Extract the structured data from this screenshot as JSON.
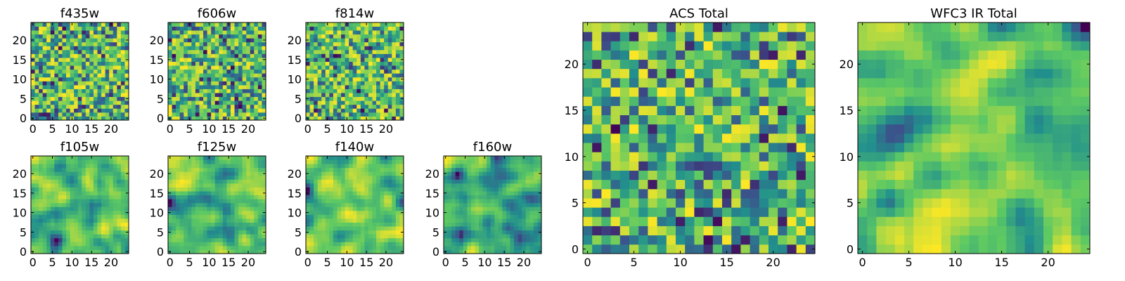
{
  "colormap": [
    "#440154",
    "#3b528b",
    "#21908d",
    "#5dc963",
    "#fde725"
  ],
  "chart_data": [
    {
      "type": "heatmap",
      "title": "f435w",
      "xlim": [
        -0.5,
        24.5
      ],
      "ylim": [
        -0.5,
        24.5
      ],
      "xticks": [
        "0",
        "5",
        "10",
        "15",
        "20"
      ],
      "yticks": [
        "0",
        "5",
        "10",
        "15",
        "20"
      ],
      "grid_shape": [
        25,
        25
      ],
      "texture": "noisy",
      "values": []
    },
    {
      "type": "heatmap",
      "title": "f606w",
      "xlim": [
        -0.5,
        24.5
      ],
      "ylim": [
        -0.5,
        24.5
      ],
      "xticks": [
        "0",
        "5",
        "10",
        "15",
        "20"
      ],
      "yticks": [
        "0",
        "5",
        "10",
        "15",
        "20"
      ],
      "grid_shape": [
        25,
        25
      ],
      "texture": "noisy",
      "values": []
    },
    {
      "type": "heatmap",
      "title": "f814w",
      "xlim": [
        -0.5,
        24.5
      ],
      "ylim": [
        -0.5,
        24.5
      ],
      "xticks": [
        "0",
        "5",
        "10",
        "15",
        "20"
      ],
      "yticks": [
        "0",
        "5",
        "10",
        "15",
        "20"
      ],
      "grid_shape": [
        25,
        25
      ],
      "texture": "noisy",
      "values": []
    },
    {
      "type": "heatmap",
      "title": "f105w",
      "xlim": [
        -0.5,
        24.5
      ],
      "ylim": [
        -0.5,
        24.5
      ],
      "xticks": [
        "0",
        "5",
        "10",
        "15",
        "20"
      ],
      "yticks": [
        "0",
        "5",
        "10",
        "15",
        "20"
      ],
      "grid_shape": [
        25,
        25
      ],
      "texture": "smooth",
      "values": []
    },
    {
      "type": "heatmap",
      "title": "f125w",
      "xlim": [
        -0.5,
        24.5
      ],
      "ylim": [
        -0.5,
        24.5
      ],
      "xticks": [
        "0",
        "5",
        "10",
        "15",
        "20"
      ],
      "yticks": [
        "0",
        "5",
        "10",
        "15",
        "20"
      ],
      "grid_shape": [
        25,
        25
      ],
      "texture": "smooth",
      "values": []
    },
    {
      "type": "heatmap",
      "title": "f140w",
      "xlim": [
        -0.5,
        24.5
      ],
      "ylim": [
        -0.5,
        24.5
      ],
      "xticks": [
        "0",
        "5",
        "10",
        "15",
        "20"
      ],
      "yticks": [
        "0",
        "5",
        "10",
        "15",
        "20"
      ],
      "grid_shape": [
        25,
        25
      ],
      "texture": "smooth",
      "values": []
    },
    {
      "type": "heatmap",
      "title": "f160w",
      "xlim": [
        -0.5,
        24.5
      ],
      "ylim": [
        -0.5,
        24.5
      ],
      "xticks": [
        "0",
        "5",
        "10",
        "15",
        "20"
      ],
      "yticks": [
        "0",
        "5",
        "10",
        "15",
        "20"
      ],
      "grid_shape": [
        25,
        25
      ],
      "texture": "smooth",
      "values": []
    },
    {
      "type": "heatmap",
      "title": "ACS Total",
      "xlim": [
        -0.5,
        24.5
      ],
      "ylim": [
        -0.5,
        24.5
      ],
      "xticks": [
        "0",
        "5",
        "10",
        "15",
        "20"
      ],
      "yticks": [
        "0",
        "5",
        "10",
        "15",
        "20"
      ],
      "grid_shape": [
        25,
        25
      ],
      "texture": "noisy",
      "values": []
    },
    {
      "type": "heatmap",
      "title": "WFC3 IR Total",
      "xlim": [
        -0.5,
        24.5
      ],
      "ylim": [
        -0.5,
        24.5
      ],
      "xticks": [
        "0",
        "5",
        "10",
        "15",
        "20"
      ],
      "yticks": [
        "0",
        "5",
        "10",
        "15",
        "20"
      ],
      "grid_shape": [
        25,
        25
      ],
      "texture": "smooth",
      "values": []
    }
  ]
}
